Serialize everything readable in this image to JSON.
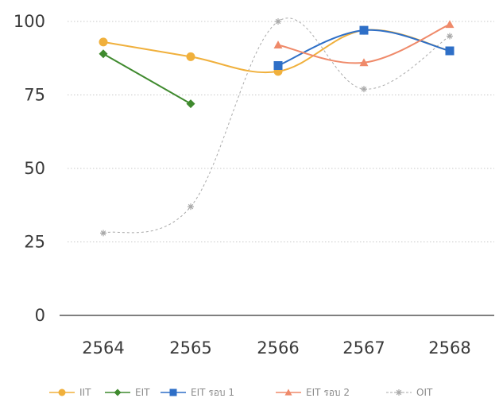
{
  "chart_data": {
    "type": "line",
    "categories": [
      "2564",
      "2565",
      "2566",
      "2567",
      "2568"
    ],
    "y_ticks": [
      "0",
      "25",
      "50",
      "75",
      "100"
    ],
    "ylim": [
      0,
      100
    ],
    "grid": "horizontal-dotted",
    "legend_position": "bottom",
    "series": [
      {
        "name": "IIT",
        "values": [
          93,
          88,
          83,
          97,
          90
        ],
        "color": "#f0b03c",
        "marker": "circle",
        "dash": false
      },
      {
        "name": "EIT",
        "values": [
          89,
          72,
          null,
          null,
          null
        ],
        "color": "#3f8a2e",
        "marker": "diamond",
        "dash": false
      },
      {
        "name": "EIT รอบ 1",
        "values": [
          null,
          null,
          85,
          97,
          90
        ],
        "color": "#2e6fc7",
        "marker": "square",
        "dash": false
      },
      {
        "name": "EIT รอบ 2",
        "values": [
          null,
          null,
          92,
          86,
          99
        ],
        "color": "#ef8a6a",
        "marker": "triangle",
        "dash": false
      },
      {
        "name": "OIT",
        "values": [
          28,
          37,
          100,
          77,
          95
        ],
        "color": "#a9a9a9",
        "marker": "star",
        "dash": true
      }
    ]
  }
}
